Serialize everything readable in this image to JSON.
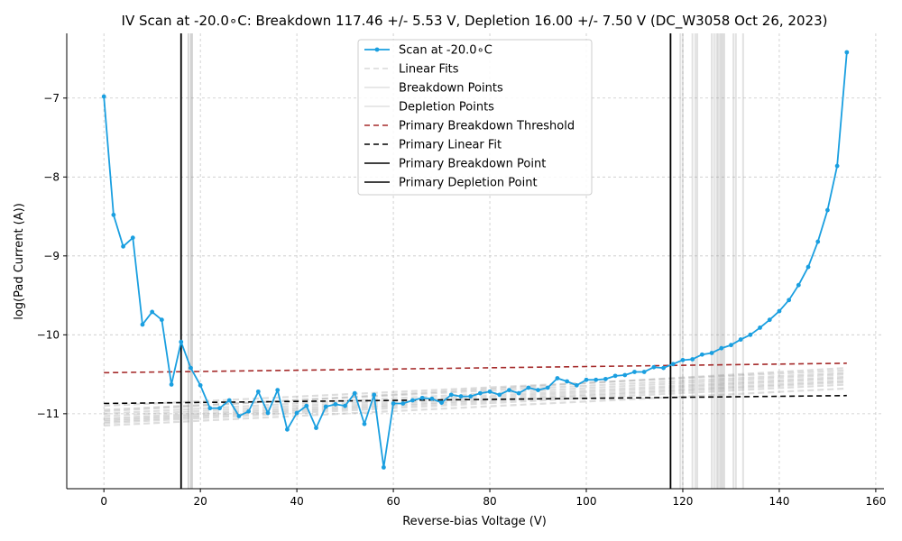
{
  "chart_data": {
    "type": "line",
    "title": "IV Scan at -20.0$^\\circ$C: Breakdown 117.46 +/- 5.53 V, Depletion 16.00 +/- 7.50 V (DC_W3058 Oct 26, 2023)",
    "title_display": "IV Scan at -20.0∘C: Breakdown 117.46 +/- 5.53 V, Depletion 16.00 +/- 7.50 V (DC_W3058 Oct 26, 2023)",
    "xlabel": "Reverse-bias Voltage (V)",
    "ylabel": "log(Pad Current (A))",
    "xlim": [
      -7.7,
      161.7
    ],
    "ylim": [
      -11.95,
      -6.18
    ],
    "x_ticks": [
      0,
      20,
      40,
      60,
      80,
      100,
      120,
      140,
      160
    ],
    "y_ticks": [
      -7,
      -8,
      -9,
      -10,
      -11
    ],
    "x_tick_labels": [
      "0",
      "20",
      "40",
      "60",
      "80",
      "100",
      "120",
      "140",
      "160"
    ],
    "y_tick_labels": [
      "−7",
      "−8",
      "−9",
      "−10",
      "−11"
    ],
    "grid": true,
    "legend_position": "top-center",
    "legend": [
      {
        "label": "Scan at -20.0∘C",
        "style": "line-marker",
        "color": "#1a9fe0"
      },
      {
        "label": "Linear Fits",
        "style": "dashed",
        "color": "#d8d8d8"
      },
      {
        "label": "Breakdown Points",
        "style": "solid",
        "color": "#e0e0e0"
      },
      {
        "label": "Depletion Points",
        "style": "solid",
        "color": "#e0e0e0"
      },
      {
        "label": "Primary Breakdown Threshold",
        "style": "dashed",
        "color": "#a52a2a"
      },
      {
        "label": "Primary Linear Fit",
        "style": "dashed",
        "color": "#000000"
      },
      {
        "label": "Primary Breakdown Point",
        "style": "solid",
        "color": "#000000"
      },
      {
        "label": "Primary Depletion Point",
        "style": "solid",
        "color": "#000000"
      }
    ],
    "series": [
      {
        "name": "Scan at -20.0∘C",
        "color": "#1a9fe0",
        "x": [
          0,
          2,
          4,
          6,
          8,
          10,
          12,
          14,
          16,
          18,
          20,
          22,
          24,
          26,
          28,
          30,
          32,
          34,
          36,
          38,
          40,
          42,
          44,
          46,
          48,
          50,
          52,
          54,
          56,
          58,
          60,
          62,
          64,
          66,
          68,
          70,
          72,
          74,
          76,
          78,
          80,
          82,
          84,
          86,
          88,
          90,
          92,
          94,
          96,
          98,
          100,
          102,
          104,
          106,
          108,
          110,
          112,
          114,
          116,
          118,
          120,
          122,
          124,
          126,
          128,
          130,
          132,
          134,
          136,
          138,
          140,
          142,
          144,
          146,
          148,
          150,
          152,
          154
        ],
        "y": [
          -6.98,
          -8.48,
          -8.88,
          -8.77,
          -9.87,
          -9.71,
          -9.81,
          -10.63,
          -10.09,
          -10.42,
          -10.64,
          -10.93,
          -10.93,
          -10.83,
          -11.03,
          -10.97,
          -10.72,
          -10.99,
          -10.7,
          -11.2,
          -10.99,
          -10.9,
          -11.18,
          -10.91,
          -10.88,
          -10.9,
          -10.74,
          -11.13,
          -10.76,
          -11.68,
          -10.87,
          -10.87,
          -10.83,
          -10.8,
          -10.81,
          -10.86,
          -10.76,
          -10.78,
          -10.78,
          -10.74,
          -10.72,
          -10.76,
          -10.7,
          -10.74,
          -10.67,
          -10.7,
          -10.67,
          -10.55,
          -10.59,
          -10.64,
          -10.57,
          -10.57,
          -10.56,
          -10.52,
          -10.51,
          -10.47,
          -10.47,
          -10.41,
          -10.42,
          -10.37,
          -10.32,
          -10.31,
          -10.25,
          -10.23,
          -10.17,
          -10.13,
          -10.06,
          -10.0,
          -9.91,
          -9.81,
          -9.7,
          -9.56,
          -9.37,
          -9.14,
          -8.82,
          -8.42,
          -7.86,
          -6.42
        ]
      }
    ],
    "primary_breakdown_threshold": {
      "x": [
        0,
        154
      ],
      "y": [
        -10.48,
        -10.36
      ],
      "color": "#a52a2a"
    },
    "primary_linear_fit": {
      "x": [
        0,
        154
      ],
      "y": [
        -10.87,
        -10.77
      ],
      "color": "#000000"
    },
    "primary_breakdown_voltage": 117.46,
    "primary_depletion_voltage": 16.0,
    "linear_fits": [
      {
        "y0": -10.9,
        "y1": -10.45
      },
      {
        "y0": -10.95,
        "y1": -10.48
      },
      {
        "y0": -11.0,
        "y1": -10.5
      },
      {
        "y0": -11.03,
        "y1": -10.53
      },
      {
        "y0": -11.06,
        "y1": -10.55
      },
      {
        "y0": -11.08,
        "y1": -10.58
      },
      {
        "y0": -11.1,
        "y1": -10.6
      },
      {
        "y0": -11.12,
        "y1": -10.63
      },
      {
        "y0": -11.15,
        "y1": -10.68
      },
      {
        "y0": -10.97,
        "y1": -10.42
      }
    ],
    "breakdown_points": [
      119.5,
      120.0,
      122.0,
      122.6,
      123.0,
      126.0,
      126.5,
      127.0,
      127.3,
      127.7,
      128.0,
      128.3,
      128.6,
      130.5,
      131.0,
      132.5
    ],
    "depletion_points": [
      17.5,
      18.0,
      18.3
    ]
  }
}
